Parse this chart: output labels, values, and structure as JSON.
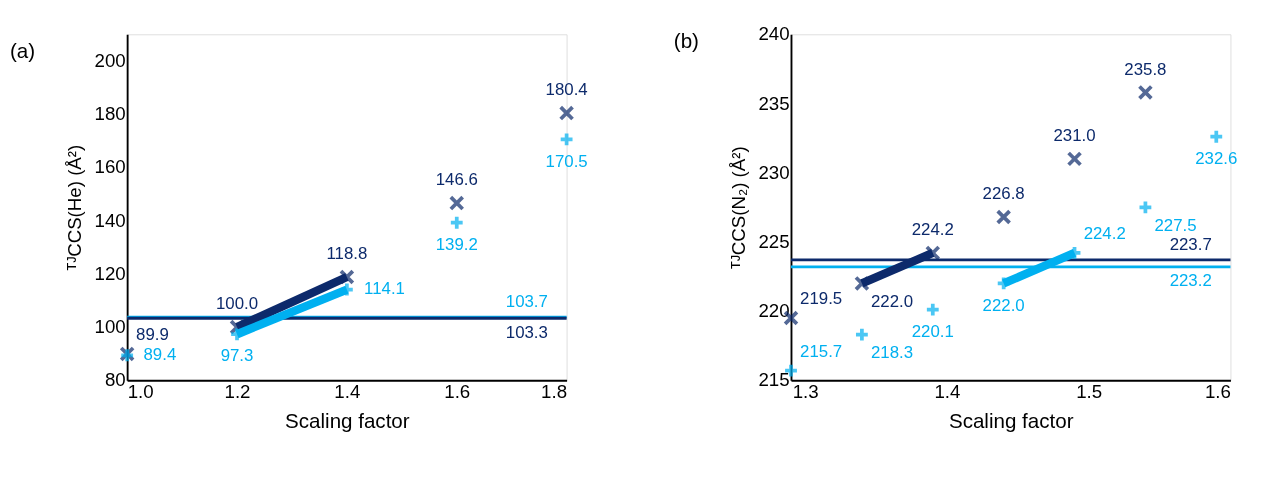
{
  "chart_data": [
    {
      "type": "scatter",
      "title": "(a)",
      "xlabel": "Scaling factor",
      "ylabel": "ᵀᴶCCS(He) (Å²)",
      "xlim": [
        1.0,
        1.8
      ],
      "xticks": [
        {
          "value": 1.0,
          "label": "1.0"
        },
        1.2,
        1.4,
        1.6,
        1.8
      ],
      "ylim": [
        80,
        210
      ],
      "yticks": [
        80,
        100,
        120,
        140,
        160,
        180,
        200
      ],
      "grid": false,
      "x": [
        1.0,
        1.2,
        1.4,
        1.6,
        1.8
      ],
      "series": [
        {
          "color": "#0d2a6b",
          "marker": "x",
          "values": [
            89.9,
            100.0,
            118.8,
            146.6,
            180.4
          ],
          "value_labels": [
            "89.9",
            "100.0",
            "118.8",
            "146.6",
            "180.4"
          ]
        },
        {
          "color": "#00b0f0",
          "marker": "cross",
          "values": [
            89.4,
            97.3,
            114.1,
            139.2,
            170.5
          ],
          "value_labels": [
            "89.4",
            "97.3",
            "114.1",
            "139.2",
            "170.5"
          ]
        },
        {
          "type": "line",
          "color": "#0d2a6b",
          "marker": "none",
          "x": [
            1.2,
            1.4
          ],
          "values": [
            100.0,
            118.8
          ]
        },
        {
          "type": "line",
          "color": "#00b0f0",
          "marker": "none",
          "x": [
            1.2,
            1.4
          ],
          "values": [
            97.3,
            114.1
          ]
        }
      ],
      "ref_lines": [
        {
          "axis": "y",
          "value": 103.7,
          "label": "103.7",
          "color": "#00b0f0"
        },
        {
          "axis": "y",
          "value": 103.3,
          "label": "103.3",
          "color": "#0d2a6b"
        }
      ]
    },
    {
      "type": "scatter",
      "title": "(b)",
      "xlabel": "Scaling factor",
      "ylabel": "ᵀᴶCCS(N₂) (Å²)",
      "xlim": [
        1.29,
        1.6
      ],
      "xticks": [
        1.3,
        1.4,
        1.5,
        1.6
      ],
      "ylim": [
        215,
        240
      ],
      "yticks": [
        215,
        220,
        225,
        230,
        235,
        240
      ],
      "grid": false,
      "series": [
        {
          "color": "#0d2a6b",
          "marker": "x",
          "x": [
            1.29,
            1.34,
            1.39,
            1.44,
            1.49,
            1.54
          ],
          "values": [
            219.5,
            222.0,
            224.2,
            226.8,
            231.0,
            235.8
          ],
          "value_labels": [
            "219.5",
            "222.0",
            "224.2",
            "226.8",
            "231.0",
            "235.8"
          ]
        },
        {
          "color": "#00b0f0",
          "marker": "cross",
          "x": [
            1.29,
            1.34,
            1.39,
            1.44,
            1.49,
            1.54,
            1.59
          ],
          "values": [
            215.7,
            218.3,
            220.1,
            222.0,
            224.2,
            227.5,
            232.6
          ],
          "value_labels": [
            "215.7",
            "218.3",
            "220.1",
            "222.0",
            "224.2",
            "227.5",
            "232.6"
          ]
        },
        {
          "type": "line",
          "color": "#0d2a6b",
          "marker": "none",
          "x": [
            1.34,
            1.39
          ],
          "values": [
            222.0,
            224.2
          ]
        },
        {
          "type": "line",
          "color": "#00b0f0",
          "marker": "none",
          "x": [
            1.44,
            1.49
          ],
          "values": [
            222.0,
            224.2
          ]
        }
      ],
      "ref_lines": [
        {
          "axis": "y",
          "value": 223.7,
          "label": "223.7",
          "color": "#0d2a6b"
        },
        {
          "axis": "y",
          "value": 223.2,
          "label": "223.2",
          "color": "#00b0f0"
        }
      ]
    }
  ]
}
